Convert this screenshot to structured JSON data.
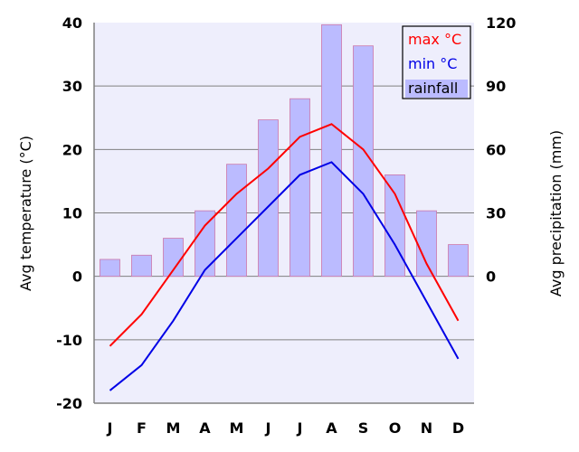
{
  "chart_data": {
    "type": "bar",
    "categories": [
      "J",
      "F",
      "M",
      "A",
      "M",
      "J",
      "J",
      "A",
      "S",
      "O",
      "N",
      "D"
    ],
    "series": [
      {
        "name": "max °C",
        "type": "line",
        "axis": "left",
        "color": "#ff0000",
        "values": [
          -11,
          -6,
          1,
          8,
          13,
          17,
          22,
          24,
          20,
          13,
          2,
          -7
        ]
      },
      {
        "name": "min °C",
        "type": "line",
        "axis": "left",
        "color": "#0000e6",
        "values": [
          -18,
          -14,
          -7,
          1,
          6,
          11,
          16,
          18,
          13,
          5,
          -4,
          -13
        ]
      },
      {
        "name": "rainfall",
        "type": "bar",
        "axis": "right",
        "color": "#bbbbff",
        "values": [
          8,
          10,
          18,
          31,
          53,
          74,
          84,
          119,
          109,
          48,
          31,
          15
        ]
      }
    ],
    "ylabel": "Avg temperature (°C)",
    "y2label": "Avg precipitation (mm)",
    "ylim": [
      -20,
      40
    ],
    "y2lim": [
      -60,
      120
    ],
    "yticks": [
      "40",
      "30",
      "20",
      "10",
      "0",
      "-10",
      "-20"
    ],
    "y2ticks": [
      "120",
      "90",
      "60",
      "30",
      "0"
    ],
    "grid": true,
    "legend": "top-right",
    "colors": {
      "plot_bg": "#eeeefc",
      "grid": "#808080",
      "bar_border": "#cc77aa"
    }
  }
}
